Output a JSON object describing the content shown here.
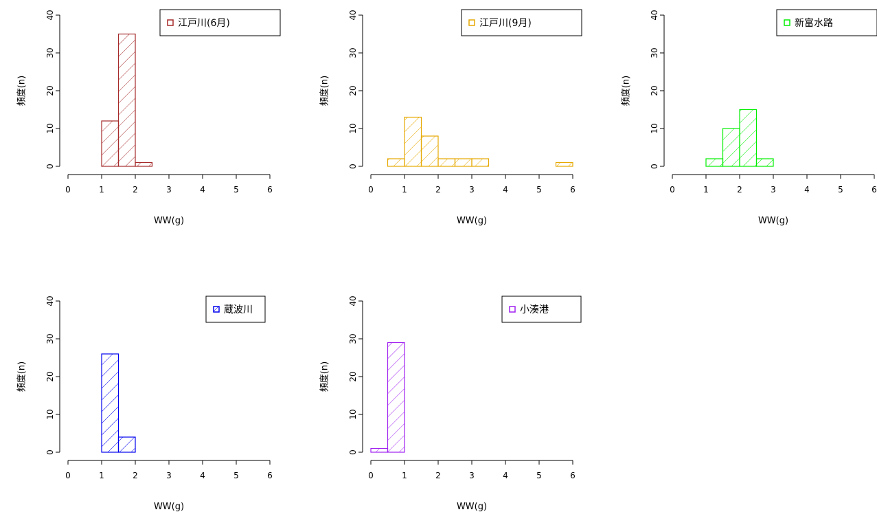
{
  "chart_data": [
    {
      "type": "bar",
      "title": "",
      "xlabel": "WW(g)",
      "ylabel": "頻度(n)",
      "xlim": [
        0,
        6
      ],
      "ylim": [
        0,
        40
      ],
      "xticks": [
        0,
        1,
        2,
        3,
        4,
        5,
        6
      ],
      "yticks": [
        0,
        10,
        20,
        30,
        40
      ],
      "bin_width": 0.5,
      "bins": [
        {
          "x0": 1.0,
          "x1": 1.5,
          "count": 12
        },
        {
          "x0": 1.5,
          "x1": 2.0,
          "count": 35
        },
        {
          "x0": 2.0,
          "x1": 2.5,
          "count": 1
        }
      ],
      "series": [
        {
          "name": "江戸川(6月)",
          "color": "#a52a2a"
        }
      ],
      "hatch": "diagonal",
      "legend_position": "top-right",
      "grid": false
    },
    {
      "type": "bar",
      "title": "",
      "xlabel": "WW(g)",
      "ylabel": "頻度(n)",
      "xlim": [
        0,
        6
      ],
      "ylim": [
        0,
        40
      ],
      "xticks": [
        0,
        1,
        2,
        3,
        4,
        5,
        6
      ],
      "yticks": [
        0,
        10,
        20,
        30,
        40
      ],
      "bin_width": 0.5,
      "bins": [
        {
          "x0": 0.5,
          "x1": 1.0,
          "count": 2
        },
        {
          "x0": 1.0,
          "x1": 1.5,
          "count": 13
        },
        {
          "x0": 1.5,
          "x1": 2.0,
          "count": 8
        },
        {
          "x0": 2.0,
          "x1": 2.5,
          "count": 2
        },
        {
          "x0": 2.5,
          "x1": 3.0,
          "count": 2
        },
        {
          "x0": 3.0,
          "x1": 3.5,
          "count": 2
        },
        {
          "x0": 3.5,
          "x1": 4.0,
          "count": 0
        },
        {
          "x0": 4.0,
          "x1": 4.5,
          "count": 0
        },
        {
          "x0": 4.5,
          "x1": 5.0,
          "count": 0
        },
        {
          "x0": 5.0,
          "x1": 5.5,
          "count": 0
        },
        {
          "x0": 5.5,
          "x1": 6.0,
          "count": 1
        }
      ],
      "series": [
        {
          "name": "江戸川(9月)",
          "color": "#e6a800"
        }
      ],
      "hatch": "diagonal",
      "legend_position": "top-right",
      "grid": false
    },
    {
      "type": "bar",
      "title": "",
      "xlabel": "WW(g)",
      "ylabel": "頻度(n)",
      "xlim": [
        0,
        6
      ],
      "ylim": [
        0,
        40
      ],
      "xticks": [
        0,
        1,
        2,
        3,
        4,
        5,
        6
      ],
      "yticks": [
        0,
        10,
        20,
        30,
        40
      ],
      "bin_width": 0.5,
      "bins": [
        {
          "x0": 1.0,
          "x1": 1.5,
          "count": 2
        },
        {
          "x0": 1.5,
          "x1": 2.0,
          "count": 10
        },
        {
          "x0": 2.0,
          "x1": 2.5,
          "count": 15
        },
        {
          "x0": 2.5,
          "x1": 3.0,
          "count": 2
        }
      ],
      "series": [
        {
          "name": "新富水路",
          "color": "#00ee00"
        }
      ],
      "hatch": "diagonal",
      "legend_position": "top-right",
      "grid": false
    },
    {
      "type": "bar",
      "title": "",
      "xlabel": "WW(g)",
      "ylabel": "頻度(n)",
      "xlim": [
        0,
        6
      ],
      "ylim": [
        0,
        40
      ],
      "xticks": [
        0,
        1,
        2,
        3,
        4,
        5,
        6
      ],
      "yticks": [
        0,
        10,
        20,
        30,
        40
      ],
      "bin_width": 0.5,
      "bins": [
        {
          "x0": 1.0,
          "x1": 1.5,
          "count": 26
        },
        {
          "x0": 1.5,
          "x1": 2.0,
          "count": 4
        }
      ],
      "series": [
        {
          "name": "蔵波川",
          "color": "#0000ee"
        }
      ],
      "hatch": "diagonal",
      "legend_position": "top-right",
      "grid": false
    },
    {
      "type": "bar",
      "title": "",
      "xlabel": "WW(g)",
      "ylabel": "頻度(n)",
      "xlim": [
        0,
        6
      ],
      "ylim": [
        0,
        40
      ],
      "xticks": [
        0,
        1,
        2,
        3,
        4,
        5,
        6
      ],
      "yticks": [
        0,
        10,
        20,
        30,
        40
      ],
      "bin_width": 0.5,
      "bins": [
        {
          "x0": 0.0,
          "x1": 0.5,
          "count": 1
        },
        {
          "x0": 0.5,
          "x1": 1.0,
          "count": 29
        }
      ],
      "series": [
        {
          "name": "小湊港",
          "color": "#a020f0"
        }
      ],
      "hatch": "diagonal",
      "legend_position": "top-right",
      "grid": false
    }
  ]
}
